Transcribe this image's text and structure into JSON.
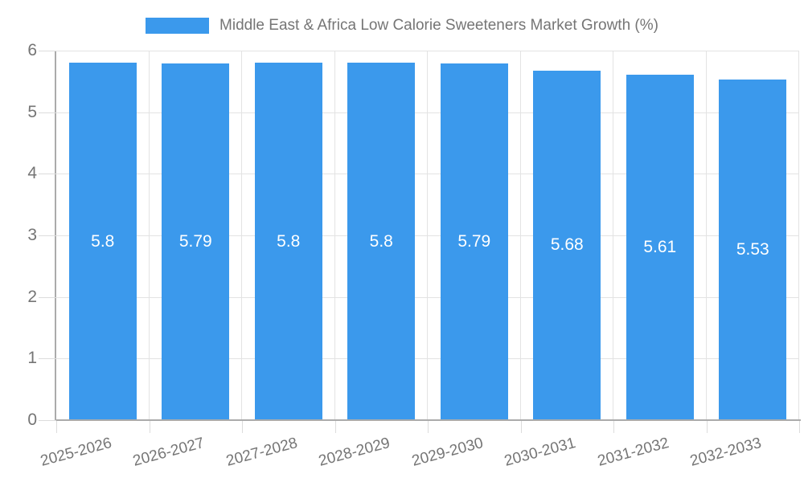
{
  "chart_data": {
    "type": "bar",
    "title": "Middle East & Africa Low Calorie Sweeteners Market Growth (%)",
    "categories": [
      "2025-2026",
      "2026-2027",
      "2027-2028",
      "2028-2029",
      "2029-2030",
      "2030-2031",
      "2031-2032",
      "2032-2033"
    ],
    "values": [
      5.8,
      5.79,
      5.8,
      5.8,
      5.79,
      5.68,
      5.61,
      5.53
    ],
    "value_labels": [
      "5.8",
      "5.79",
      "5.8",
      "5.8",
      "5.79",
      "5.68",
      "5.61",
      "5.53"
    ],
    "xlabel": "",
    "ylabel": "",
    "ylim": [
      0,
      6
    ],
    "y_ticks": [
      0,
      1,
      2,
      3,
      4,
      5,
      6
    ],
    "grid": true,
    "legend_position": "top",
    "colors": {
      "bar": "#3b99ec",
      "grid": "#e3e3e3",
      "axis": "#ababab",
      "tick": "#dcdcdc",
      "label": "#757575",
      "value_label": "#ffffff",
      "background": "#ffffff"
    }
  }
}
